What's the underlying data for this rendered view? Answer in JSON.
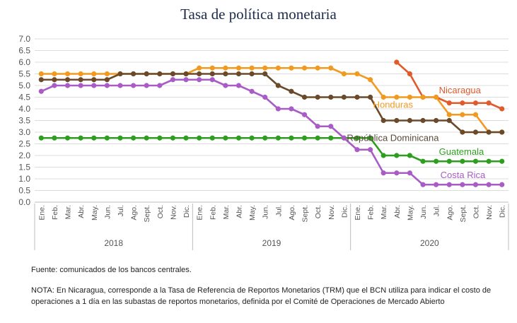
{
  "chart_data": {
    "type": "line",
    "title": "Tasa de política monetaria",
    "ylim": [
      0,
      7.0
    ],
    "yticks": [
      "0.0",
      "0.5",
      "1.0",
      "1.5",
      "2.0",
      "2.5",
      "3.0",
      "3.5",
      "4.0",
      "4.5",
      "5.0",
      "5.5",
      "6.0",
      "6.5",
      "7.0"
    ],
    "months": [
      "Ene.",
      "Feb.",
      "Mar.",
      "Abr.",
      "May.",
      "Jun.",
      "Jul.",
      "Ago.",
      "Sept.",
      "Oct.",
      "Nov.",
      "Dic."
    ],
    "years": [
      "2018",
      "2019",
      "2020"
    ],
    "grid": true,
    "legend": "inline labels at line ends",
    "series": [
      {
        "name": "Nicaragua",
        "color": "#e05a2b",
        "values": [
          null,
          null,
          null,
          null,
          null,
          null,
          null,
          null,
          null,
          null,
          null,
          null,
          null,
          null,
          null,
          null,
          null,
          null,
          null,
          null,
          null,
          null,
          null,
          null,
          null,
          null,
          null,
          6.0,
          5.5,
          4.5,
          4.5,
          4.25,
          4.25,
          4.25,
          4.25,
          4.0
        ]
      },
      {
        "name": "Honduras",
        "color": "#f29a1f",
        "values": [
          5.5,
          5.5,
          5.5,
          5.5,
          5.5,
          5.5,
          5.5,
          5.5,
          5.5,
          5.5,
          5.5,
          5.5,
          5.75,
          5.75,
          5.75,
          5.75,
          5.75,
          5.75,
          5.75,
          5.75,
          5.75,
          5.75,
          5.75,
          5.5,
          5.5,
          5.25,
          4.5,
          4.5,
          4.5,
          4.5,
          4.5,
          3.75,
          3.75,
          3.75,
          3.0,
          3.0
        ]
      },
      {
        "name": "República Dominicana",
        "color": "#6b4a2b",
        "values": [
          5.25,
          5.25,
          5.25,
          5.25,
          5.25,
          5.25,
          5.5,
          5.5,
          5.5,
          5.5,
          5.5,
          5.5,
          5.5,
          5.5,
          5.5,
          5.5,
          5.5,
          5.5,
          5.0,
          4.75,
          4.5,
          4.5,
          4.5,
          4.5,
          4.5,
          4.5,
          3.5,
          3.5,
          3.5,
          3.5,
          3.5,
          3.5,
          3.0,
          3.0,
          3.0,
          3.0
        ]
      },
      {
        "name": "Guatemala",
        "color": "#2e9e1f",
        "values": [
          2.75,
          2.75,
          2.75,
          2.75,
          2.75,
          2.75,
          2.75,
          2.75,
          2.75,
          2.75,
          2.75,
          2.75,
          2.75,
          2.75,
          2.75,
          2.75,
          2.75,
          2.75,
          2.75,
          2.75,
          2.75,
          2.75,
          2.75,
          2.75,
          2.75,
          2.75,
          2.0,
          2.0,
          2.0,
          1.75,
          1.75,
          1.75,
          1.75,
          1.75,
          1.75,
          1.75
        ]
      },
      {
        "name": "Costa Rica",
        "color": "#a95cc6",
        "values": [
          4.75,
          5.0,
          5.0,
          5.0,
          5.0,
          5.0,
          5.0,
          5.0,
          5.0,
          5.0,
          5.25,
          5.25,
          5.25,
          5.25,
          5.0,
          5.0,
          4.75,
          4.5,
          4.0,
          4.0,
          3.75,
          3.25,
          3.25,
          2.75,
          2.25,
          2.25,
          1.25,
          1.25,
          1.25,
          0.75,
          0.75,
          0.75,
          0.75,
          0.75,
          0.75,
          0.75
        ]
      }
    ]
  },
  "notes": {
    "source": "Fuente: comunicados de los bancos centrales.",
    "note": "NOTA: En Nicaragua, corresponde a la Tasa de Referencia de Reportos Monetarios (TRM) que el BCN utiliza para indicar el costo de operaciones a 1 día en las subastas de reportos monetarios, definida por el Comité de Operaciones de Mercado Abierto"
  }
}
